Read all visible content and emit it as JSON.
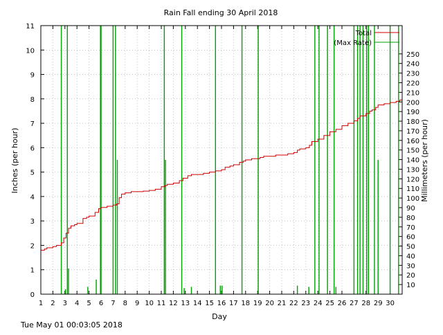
{
  "chart_data": {
    "type": "line",
    "title": "Rain Fall ending 30 April 2018",
    "xlabel": "Day",
    "ylabel": "Inches (per hour)",
    "y2label": "Millimeters (per hour)",
    "xlim": [
      1,
      31
    ],
    "ylim": [
      0,
      11
    ],
    "y2lim": [
      0,
      279.4
    ],
    "x_ticks": [
      1,
      2,
      3,
      4,
      5,
      6,
      7,
      8,
      9,
      10,
      11,
      12,
      13,
      14,
      15,
      16,
      17,
      18,
      19,
      20,
      21,
      22,
      23,
      24,
      25,
      26,
      27,
      28,
      29,
      30
    ],
    "y_ticks": [
      0,
      1,
      2,
      3,
      4,
      5,
      6,
      7,
      8,
      9,
      10,
      11
    ],
    "y2_ticks": [
      10,
      20,
      30,
      40,
      50,
      60,
      70,
      80,
      90,
      100,
      110,
      120,
      130,
      140,
      150,
      160,
      170,
      180,
      190,
      200,
      210,
      220,
      230,
      240,
      250
    ],
    "grid": true,
    "legend": "top-right",
    "series": [
      {
        "name": "Total",
        "color": "#cc0000",
        "x": [
          1.0,
          1.3,
          1.5,
          2.0,
          2.3,
          2.7,
          2.9,
          3.1,
          3.3,
          3.5,
          3.8,
          4.0,
          4.5,
          4.8,
          5.0,
          5.5,
          5.8,
          6.0,
          6.5,
          7.0,
          7.3,
          7.5,
          7.7,
          8.0,
          8.5,
          9.0,
          9.5,
          10.0,
          10.5,
          11.0,
          11.3,
          11.5,
          12.0,
          12.5,
          12.8,
          13.2,
          13.5,
          14.0,
          14.5,
          15.0,
          15.5,
          16.0,
          16.3,
          16.7,
          17.0,
          17.5,
          17.8,
          18.0,
          18.5,
          19.0,
          19.2,
          19.5,
          20.0,
          20.5,
          21.0,
          21.5,
          22.0,
          22.3,
          22.5,
          23.0,
          23.3,
          23.5,
          24.0,
          24.5,
          25.0,
          25.5,
          26.0,
          26.5,
          27.0,
          27.3,
          27.5,
          28.0,
          28.3,
          28.5,
          28.8,
          29.0,
          29.5,
          30.0,
          30.5,
          30.8,
          31.0
        ],
        "y": [
          1.8,
          1.85,
          1.9,
          1.95,
          2.0,
          2.1,
          2.3,
          2.5,
          2.7,
          2.8,
          2.85,
          2.9,
          3.1,
          3.15,
          3.2,
          3.35,
          3.5,
          3.55,
          3.6,
          3.65,
          3.7,
          3.95,
          4.1,
          4.15,
          4.2,
          4.2,
          4.22,
          4.25,
          4.3,
          4.4,
          4.45,
          4.5,
          4.55,
          4.65,
          4.75,
          4.85,
          4.9,
          4.9,
          4.95,
          5.0,
          5.05,
          5.1,
          5.2,
          5.25,
          5.3,
          5.4,
          5.45,
          5.5,
          5.55,
          5.55,
          5.6,
          5.65,
          5.65,
          5.7,
          5.7,
          5.75,
          5.8,
          5.9,
          5.95,
          6.0,
          6.1,
          6.25,
          6.35,
          6.5,
          6.65,
          6.75,
          6.9,
          7.0,
          7.1,
          7.2,
          7.3,
          7.4,
          7.5,
          7.55,
          7.65,
          7.75,
          7.8,
          7.85,
          7.9,
          7.95,
          8.0
        ]
      },
      {
        "name": "(Max Rate)",
        "color": "#00a000",
        "spikes": [
          {
            "x": 2.7,
            "y": 11
          },
          {
            "x": 3.05,
            "y": 0.2
          },
          {
            "x": 3.2,
            "y": 11
          },
          {
            "x": 3.3,
            "y": 1.05
          },
          {
            "x": 4.9,
            "y": 0.3
          },
          {
            "x": 5.6,
            "y": 0.6
          },
          {
            "x": 5.95,
            "y": 11
          },
          {
            "x": 6.0,
            "y": 11
          },
          {
            "x": 7.0,
            "y": 11
          },
          {
            "x": 7.2,
            "y": 11
          },
          {
            "x": 7.35,
            "y": 5.5
          },
          {
            "x": 11.25,
            "y": 11
          },
          {
            "x": 11.35,
            "y": 5.5
          },
          {
            "x": 12.7,
            "y": 11
          },
          {
            "x": 12.9,
            "y": 0.25
          },
          {
            "x": 13.5,
            "y": 0.3
          },
          {
            "x": 15.5,
            "y": 11
          },
          {
            "x": 15.9,
            "y": 0.35
          },
          {
            "x": 16.05,
            "y": 0.35
          },
          {
            "x": 17.7,
            "y": 11
          },
          {
            "x": 19.05,
            "y": 11
          },
          {
            "x": 22.3,
            "y": 0.35
          },
          {
            "x": 23.25,
            "y": 0.3
          },
          {
            "x": 23.75,
            "y": 11
          },
          {
            "x": 24.1,
            "y": 11
          },
          {
            "x": 24.8,
            "y": 11
          },
          {
            "x": 25.35,
            "y": 11
          },
          {
            "x": 25.5,
            "y": 0.3
          },
          {
            "x": 27.0,
            "y": 11
          },
          {
            "x": 27.3,
            "y": 11
          },
          {
            "x": 27.5,
            "y": 11
          },
          {
            "x": 27.75,
            "y": 11
          },
          {
            "x": 28.05,
            "y": 11
          },
          {
            "x": 28.2,
            "y": 11
          },
          {
            "x": 28.7,
            "y": 11
          },
          {
            "x": 29.0,
            "y": 5.5
          },
          {
            "x": 30.0,
            "y": 11
          },
          {
            "x": 30.7,
            "y": 11
          }
        ]
      }
    ]
  },
  "footer": {
    "timestamp": "Tue May 01 00:03:05 2018"
  }
}
